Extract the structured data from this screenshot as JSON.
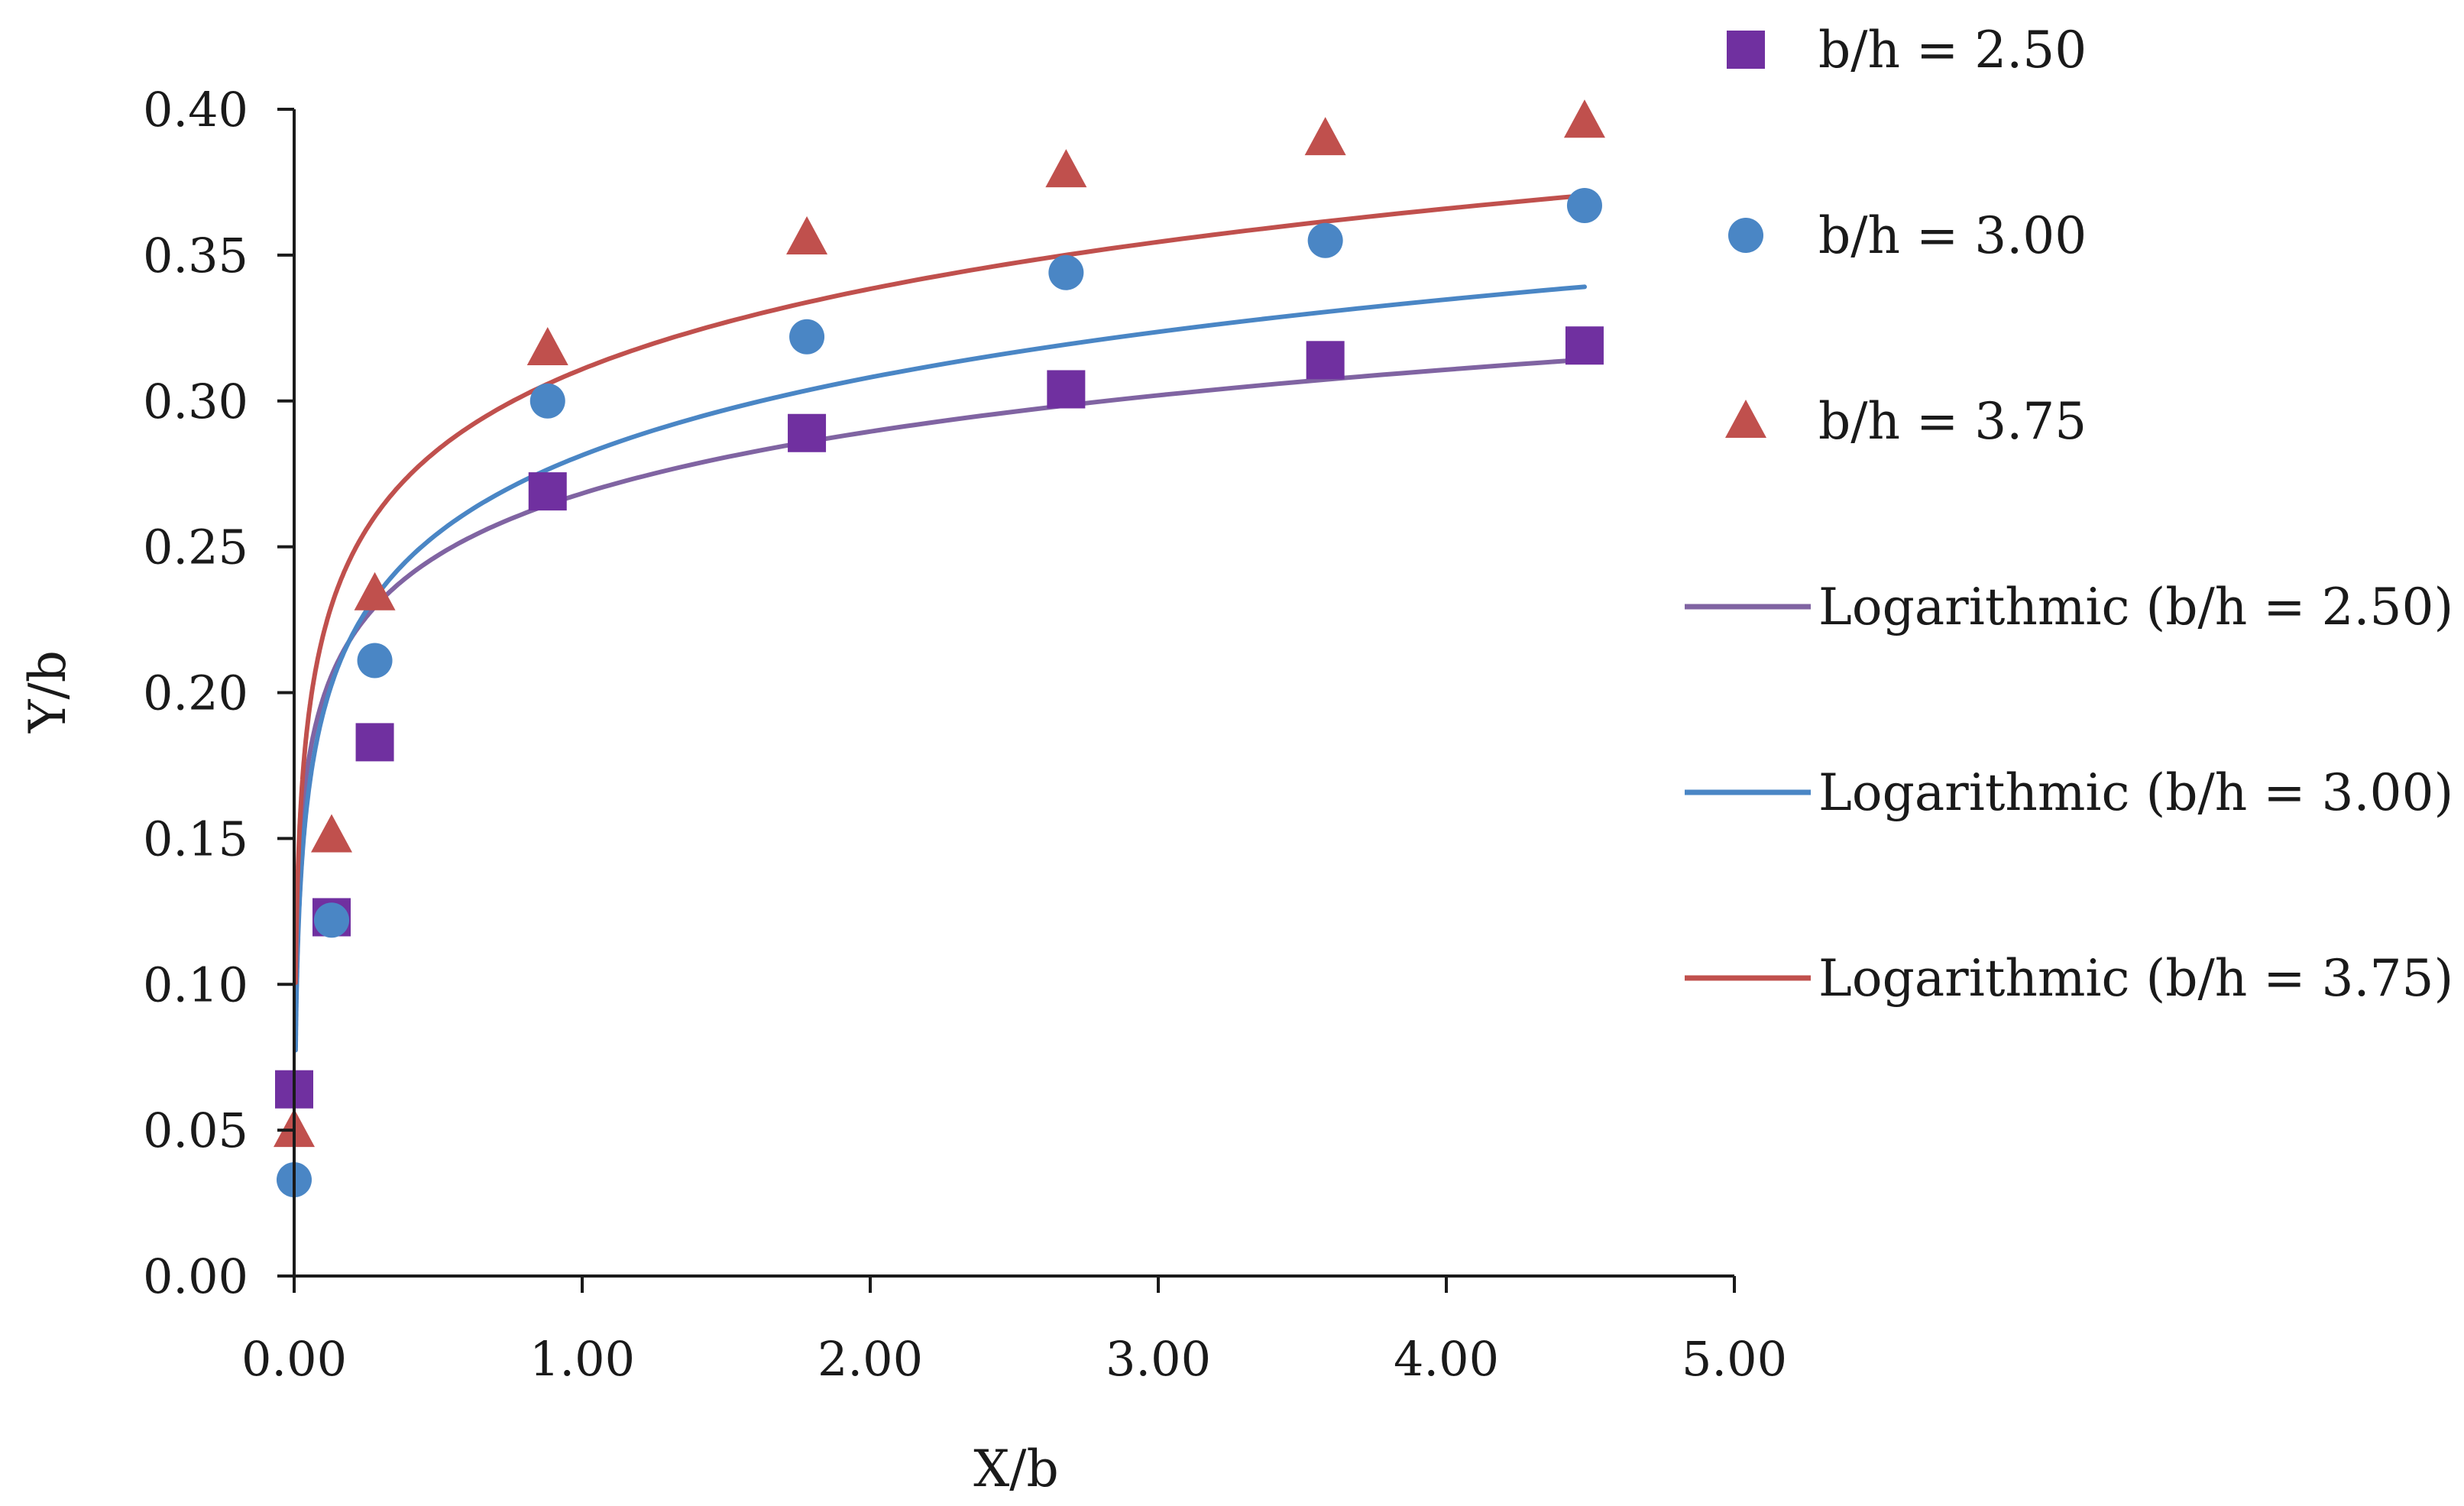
{
  "chart_data": {
    "type": "scatter",
    "title": "",
    "xlabel": "X/b",
    "ylabel": "Y/b",
    "xlim": [
      0,
      5
    ],
    "ylim": [
      0,
      0.4
    ],
    "xticks": [
      "0.00",
      "1.00",
      "2.00",
      "3.00",
      "4.00",
      "5.00"
    ],
    "yticks": [
      "0.00",
      "0.05",
      "0.10",
      "0.15",
      "0.20",
      "0.25",
      "0.30",
      "0.35",
      "0.40"
    ],
    "grid": false,
    "legend_position": "right",
    "series": [
      {
        "name": "b/h = 2.50",
        "marker": "square",
        "color": "#7030A0",
        "x": [
          0.0,
          0.13,
          0.28,
          0.88,
          1.78,
          2.68,
          3.58,
          4.48
        ],
        "y": [
          0.064,
          0.123,
          0.183,
          0.269,
          0.289,
          0.304,
          0.314,
          0.319
        ]
      },
      {
        "name": "b/h = 3.00",
        "marker": "circle",
        "color": "#4A86C5",
        "x": [
          0.0,
          0.13,
          0.28,
          0.88,
          1.78,
          2.68,
          3.58,
          4.48
        ],
        "y": [
          0.033,
          0.122,
          0.211,
          0.3,
          0.322,
          0.344,
          0.355,
          0.367
        ]
      },
      {
        "name": "b/h = 3.75",
        "marker": "triangle",
        "color": "#C0504D",
        "x": [
          0.0,
          0.13,
          0.28,
          0.88,
          1.78,
          2.68,
          3.58,
          4.48
        ],
        "y": [
          0.05,
          0.151,
          0.234,
          0.318,
          0.356,
          0.379,
          0.39,
          0.396
        ]
      }
    ],
    "trendlines": [
      {
        "name": "Logarithmic (b/h = 2.50)",
        "type": "logarithmic",
        "color": "#8064A2",
        "a": 0.0306,
        "b": 0.2683,
        "x_range": [
          0.005,
          4.48
        ]
      },
      {
        "name": "Logarithmic (b/h = 3.00)",
        "type": "logarithmic",
        "color": "#4A86C5",
        "a": 0.0385,
        "b": 0.2814,
        "x_range": [
          0.005,
          4.48
        ]
      },
      {
        "name": "Logarithmic (b/h = 3.75)",
        "type": "logarithmic",
        "color": "#C0504D",
        "a": 0.0397,
        "b": 0.3109,
        "x_range": [
          0.005,
          4.48
        ]
      }
    ]
  }
}
